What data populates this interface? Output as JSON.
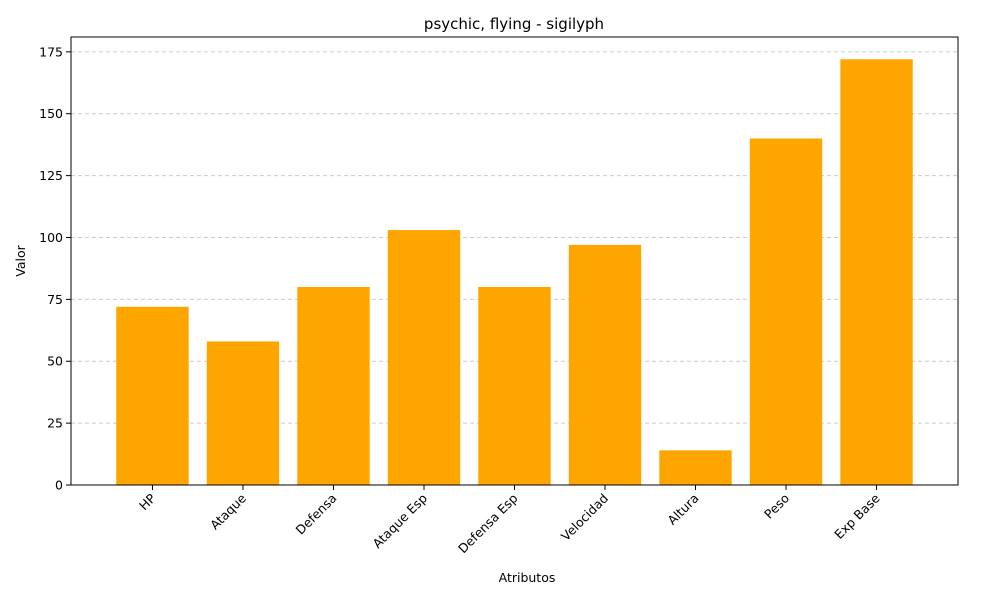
{
  "chart_data": {
    "type": "bar",
    "title": "psychic, flying - sigilyph",
    "xlabel": "Atributos",
    "ylabel": "Valor",
    "categories": [
      "HP",
      "Ataque",
      "Defensa",
      "Ataque Esp",
      "Defensa Esp",
      "Velocidad",
      "Altura",
      "Peso",
      "Exp Base"
    ],
    "values": [
      72,
      58,
      80,
      103,
      80,
      97,
      14,
      140,
      172
    ],
    "ylim": [
      0,
      181
    ],
    "yticks": [
      0,
      25,
      50,
      75,
      100,
      125,
      150,
      175
    ],
    "bar_color": "#FFA500",
    "grid": "y-dashed",
    "legend": "none"
  }
}
